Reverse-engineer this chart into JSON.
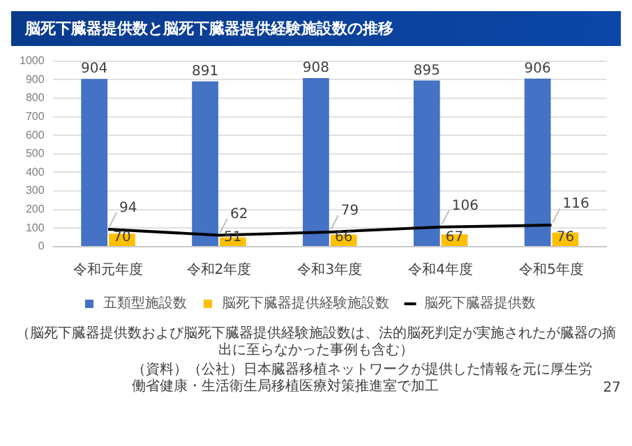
{
  "chart_data": {
    "type": "bar",
    "title": "脳死下臓器提供数と脳死下臓器提供経験施設数の推移",
    "categories": [
      "令和元年度",
      "令和2年度",
      "令和3年度",
      "令和4年度",
      "令和5年度"
    ],
    "series": [
      {
        "name": "五類型施設数",
        "color": "#4472c4",
        "values": [
          904,
          891,
          908,
          895,
          906
        ]
      },
      {
        "name": "脳死下臓器提供経験施設数",
        "color": "#ffc000",
        "values": [
          70,
          51,
          66,
          67,
          76
        ]
      },
      {
        "name": "脳死下臓器提供数",
        "type": "line",
        "color": "#000000",
        "values": [
          94,
          62,
          79,
          106,
          116
        ]
      }
    ],
    "ylim": [
      0,
      1000
    ],
    "yticks": [
      0,
      100,
      200,
      300,
      400,
      500,
      600,
      700,
      800,
      900,
      1000
    ],
    "grid": "y",
    "legend": "bottom",
    "marker": "none",
    "line_style": "solid",
    "data_labels": true,
    "annotations": [
      "（脳死下臓器提供数および脳死下臓器提供経験施設数は、法的脳死判定が実施されたが臓器の摘出に至らなかった事例も含む）",
      "（資料）（公社）日本臓器移植ネットワークが提供した情報を元に厚生労働省健康・生活衛生局移植医療対策推進室で加工",
      "27"
    ]
  }
}
